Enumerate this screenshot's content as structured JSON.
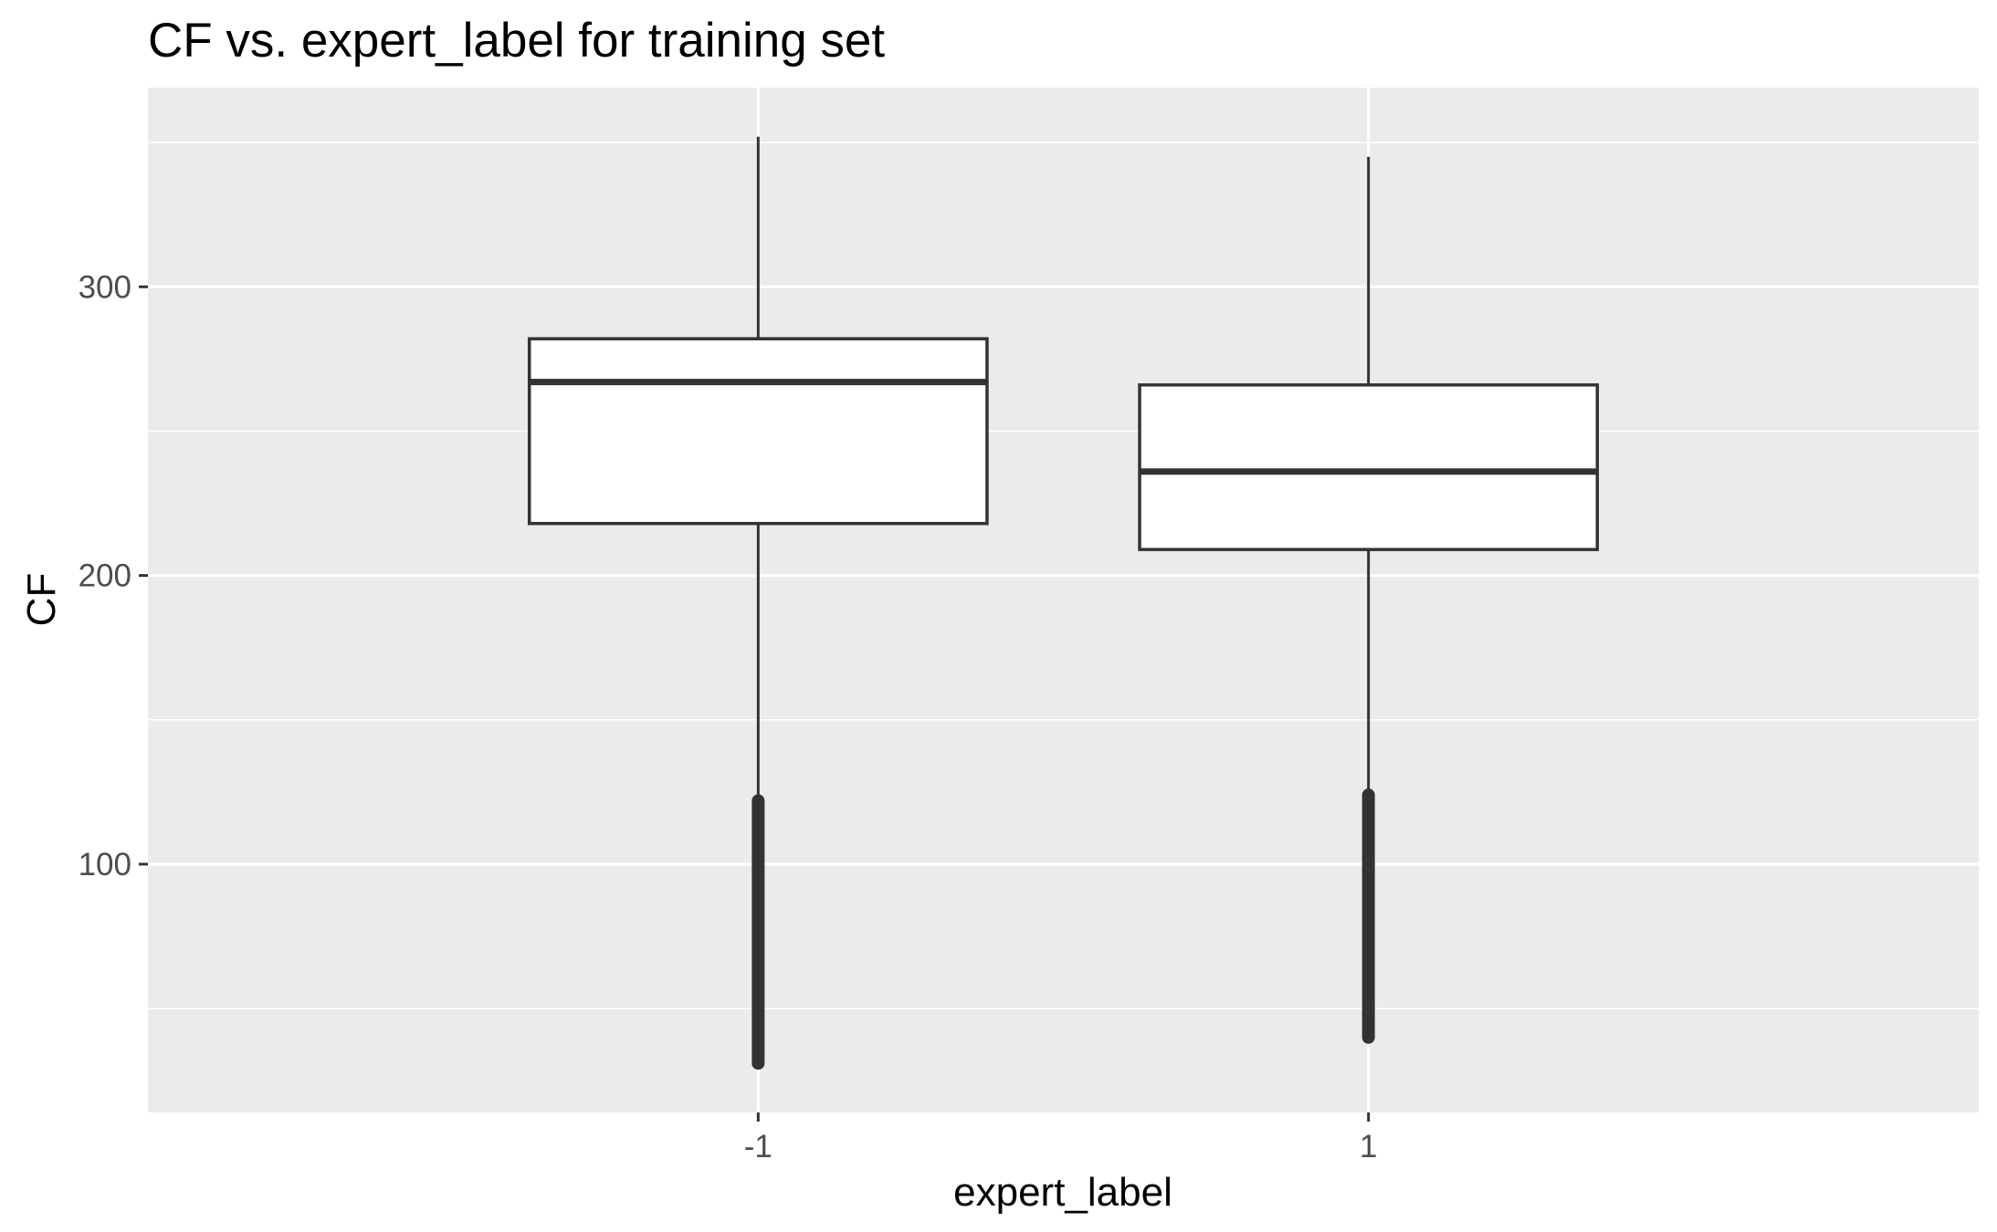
{
  "chart_data": {
    "type": "box",
    "title": "CF vs. expert_label for training set",
    "xlabel": "expert_label",
    "ylabel": "CF",
    "categories": [
      "-1",
      "1"
    ],
    "ylim": [
      14,
      369
    ],
    "yticks": [
      100,
      200,
      300
    ],
    "grid": true,
    "colors": {
      "panel": "#ebebeb",
      "grid_major": "#ffffff",
      "box_fill": "#ffffff",
      "box_line": "#333333",
      "tick_text": "#4d4d4d"
    },
    "boxes": [
      {
        "category": "-1",
        "q1": 218,
        "median": 267,
        "q3": 282,
        "whisker_low": 122,
        "whisker_high": 352,
        "outlier_range": [
          31,
          122
        ]
      },
      {
        "category": "1",
        "q1": 209,
        "median": 236,
        "q3": 266,
        "whisker_low": 124,
        "whisker_high": 345,
        "outlier_range": [
          40,
          124
        ]
      }
    ]
  }
}
